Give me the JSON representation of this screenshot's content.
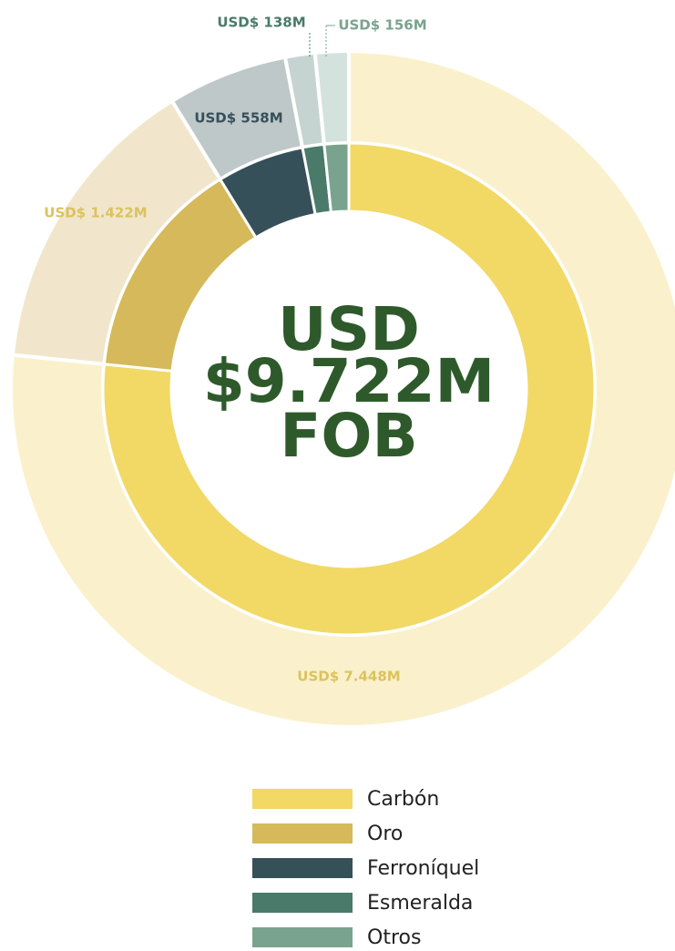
{
  "chart_data": {
    "type": "donut",
    "categories": [
      "Carbón",
      "Oro",
      "Ferroníquel",
      "Esmeralda",
      "Otros"
    ],
    "values": [
      7448,
      1422,
      558,
      138,
      156
    ],
    "value_labels": [
      "USD$ 7.448M",
      "USD$ 1.422M",
      "USD$ 558M",
      "USD$ 138M",
      "USD$ 156M"
    ],
    "colors": [
      "#f2d865",
      "#d5b95b",
      "#36505a",
      "#4a7a6a",
      "#7aa38f"
    ],
    "outer_colors": [
      "#faf1cc",
      "#f1e6cb",
      "#bfc8c9",
      "#c5d4d0",
      "#d4e2dd"
    ],
    "center_label": [
      "USD",
      "$9.722M",
      "FOB"
    ],
    "legend": "bottom"
  }
}
